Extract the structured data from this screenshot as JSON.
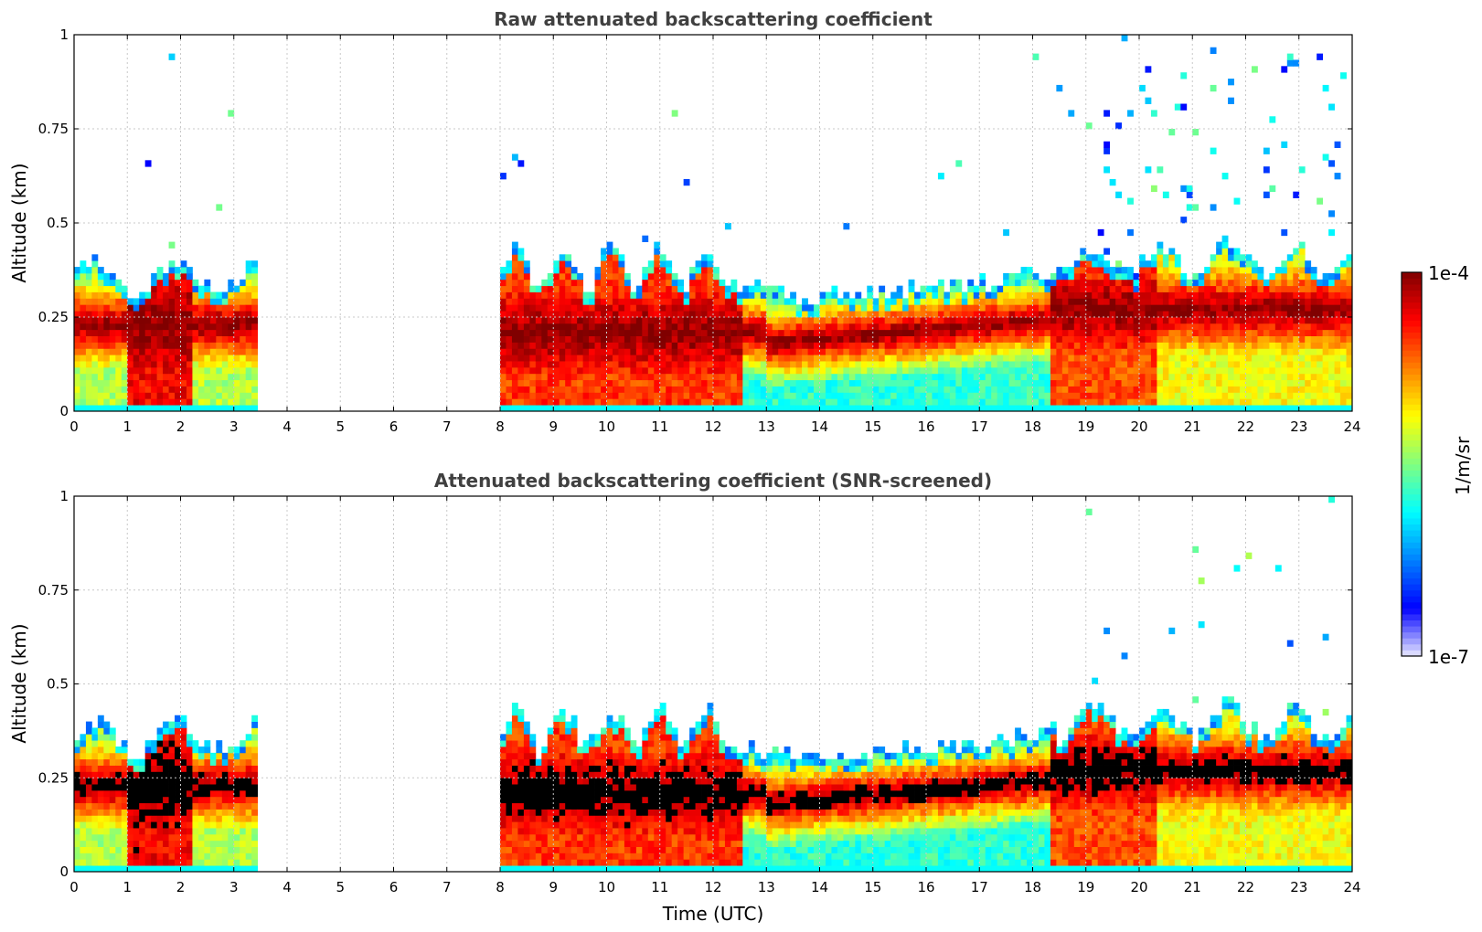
{
  "chart_data": [
    {
      "type": "heatmap",
      "title": "Raw attenuated backscattering coefficient",
      "xlabel": "",
      "ylabel": "Altitude (km)",
      "xlim": [
        0,
        24
      ],
      "ylim": [
        0,
        1
      ],
      "x_ticks": [
        "0",
        "1",
        "2",
        "3",
        "4",
        "5",
        "6",
        "7",
        "8",
        "9",
        "10",
        "11",
        "12",
        "13",
        "14",
        "15",
        "16",
        "17",
        "18",
        "19",
        "20",
        "21",
        "22",
        "23",
        "24"
      ],
      "y_ticks": [
        "0",
        "0.25",
        "0.5",
        "0.75",
        "1"
      ],
      "grid": true,
      "data_gaps_utc": [
        [
          3.4,
          8.0
        ]
      ],
      "screened": false
    },
    {
      "type": "heatmap",
      "title": "Attenuated backscattering coefficient (SNR-screened)",
      "xlabel": "Time (UTC)",
      "ylabel": "Altitude (km)",
      "xlim": [
        0,
        24
      ],
      "ylim": [
        0,
        1
      ],
      "x_ticks": [
        "0",
        "1",
        "2",
        "3",
        "4",
        "5",
        "6",
        "7",
        "8",
        "9",
        "10",
        "11",
        "12",
        "13",
        "14",
        "15",
        "16",
        "17",
        "18",
        "19",
        "20",
        "21",
        "22",
        "23",
        "24"
      ],
      "y_ticks": [
        "0",
        "0.25",
        "0.5",
        "0.75",
        "1"
      ],
      "grid": true,
      "data_gaps_utc": [
        [
          3.4,
          8.0
        ]
      ],
      "screened": true
    }
  ],
  "colorbar": {
    "max_label": "1e-4",
    "min_label": "1e-7",
    "unit_label": "1/m/sr",
    "colormap": [
      "#e8e8ff",
      "#0000ff",
      "#0080ff",
      "#00ffff",
      "#80ff80",
      "#ffff00",
      "#ff8000",
      "#ff0000",
      "#800000"
    ]
  }
}
